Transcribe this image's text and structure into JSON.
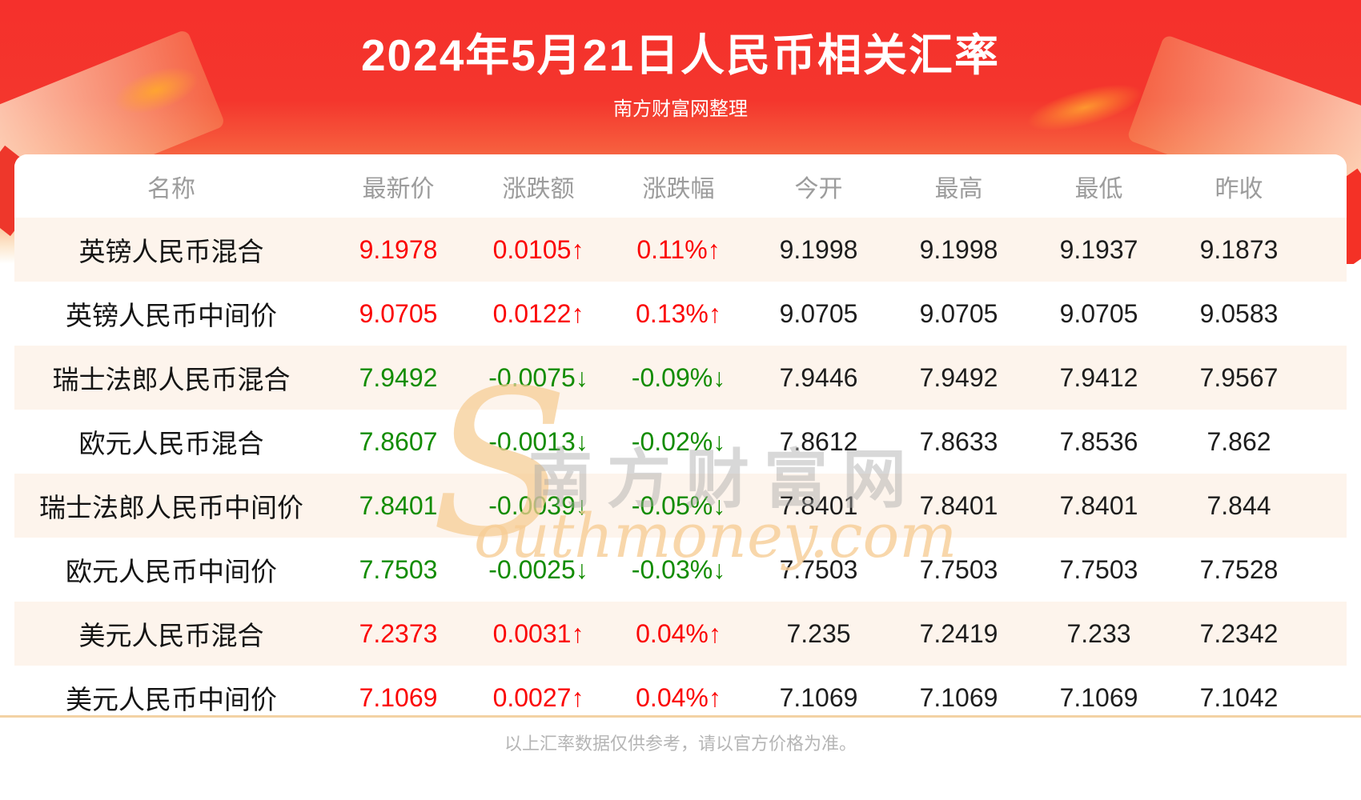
{
  "page": {
    "title": "2024年5月21日人民币相关汇率",
    "subtitle": "南方财富网整理",
    "footer_note": "以上汇率数据仅供参考，请以官方价格为准。"
  },
  "watermark": {
    "en_initial": "S",
    "cn": "南方财富网",
    "en_rest": "outhmoney.com"
  },
  "colors": {
    "up_red": "#fb0505",
    "down_green": "#128c00",
    "header_gray": "#9c9c9c",
    "row_alt_pink": "#fdf4ec",
    "hero_red": "#f5302c",
    "divider_peach": "#f3d2a4"
  },
  "table": {
    "columns": [
      "名称",
      "最新价",
      "涨跌额",
      "涨跌幅",
      "今开",
      "最高",
      "最低",
      "昨收"
    ],
    "rows": [
      {
        "name": "英镑人民币混合",
        "latest": "9.1978",
        "change": "0.0105↑",
        "pct": "0.11%↑",
        "trend": "up",
        "open": "9.1998",
        "high": "9.1998",
        "low": "9.1937",
        "prev": "9.1873"
      },
      {
        "name": "英镑人民币中间价",
        "latest": "9.0705",
        "change": "0.0122↑",
        "pct": "0.13%↑",
        "trend": "up",
        "open": "9.0705",
        "high": "9.0705",
        "low": "9.0705",
        "prev": "9.0583"
      },
      {
        "name": "瑞士法郎人民币混合",
        "latest": "7.9492",
        "change": "-0.0075↓",
        "pct": "-0.09%↓",
        "trend": "down",
        "open": "7.9446",
        "high": "7.9492",
        "low": "7.9412",
        "prev": "7.9567"
      },
      {
        "name": "欧元人民币混合",
        "latest": "7.8607",
        "change": "-0.0013↓",
        "pct": "-0.02%↓",
        "trend": "down",
        "open": "7.8612",
        "high": "7.8633",
        "low": "7.8536",
        "prev": "7.862"
      },
      {
        "name": "瑞士法郎人民币中间价",
        "latest": "7.8401",
        "change": "-0.0039↓",
        "pct": "-0.05%↓",
        "trend": "down",
        "open": "7.8401",
        "high": "7.8401",
        "low": "7.8401",
        "prev": "7.844"
      },
      {
        "name": "欧元人民币中间价",
        "latest": "7.7503",
        "change": "-0.0025↓",
        "pct": "-0.03%↓",
        "trend": "down",
        "open": "7.7503",
        "high": "7.7503",
        "low": "7.7503",
        "prev": "7.7528"
      },
      {
        "name": "美元人民币混合",
        "latest": "7.2373",
        "change": "0.0031↑",
        "pct": "0.04%↑",
        "trend": "up",
        "open": "7.235",
        "high": "7.2419",
        "low": "7.233",
        "prev": "7.2342"
      },
      {
        "name": "美元人民币中间价",
        "latest": "7.1069",
        "change": "0.0027↑",
        "pct": "0.04%↑",
        "trend": "up",
        "open": "7.1069",
        "high": "7.1069",
        "low": "7.1069",
        "prev": "7.1042"
      }
    ]
  },
  "chart_data": {
    "type": "table",
    "title": "2024年5月21日人民币相关汇率",
    "subtitle": "南方财富网整理",
    "columns": [
      "名称",
      "最新价",
      "涨跌额",
      "涨跌幅",
      "今开",
      "最高",
      "最低",
      "昨收"
    ],
    "rows": [
      [
        "英镑人民币混合",
        9.1978,
        0.0105,
        "0.11%",
        9.1998,
        9.1998,
        9.1937,
        9.1873
      ],
      [
        "英镑人民币中间价",
        9.0705,
        0.0122,
        "0.13%",
        9.0705,
        9.0705,
        9.0705,
        9.0583
      ],
      [
        "瑞士法郎人民币混合",
        7.9492,
        -0.0075,
        "-0.09%",
        7.9446,
        7.9492,
        7.9412,
        7.9567
      ],
      [
        "欧元人民币混合",
        7.8607,
        -0.0013,
        "-0.02%",
        7.8612,
        7.8633,
        7.8536,
        7.862
      ],
      [
        "瑞士法郎人民币中间价",
        7.8401,
        -0.0039,
        "-0.05%",
        7.8401,
        7.8401,
        7.8401,
        7.844
      ],
      [
        "欧元人民币中间价",
        7.7503,
        -0.0025,
        "-0.03%",
        7.7503,
        7.7503,
        7.7503,
        7.7528
      ],
      [
        "美元人民币混合",
        7.2373,
        0.0031,
        "0.04%",
        7.235,
        7.2419,
        7.233,
        7.2342
      ],
      [
        "美元人民币中间价",
        7.1069,
        0.0027,
        "0.04%",
        7.1069,
        7.1069,
        7.1069,
        7.1042
      ]
    ],
    "layout_hints": {
      "up_color": "#fb0505",
      "down_color": "#128c00",
      "alternating_rows": true
    }
  }
}
